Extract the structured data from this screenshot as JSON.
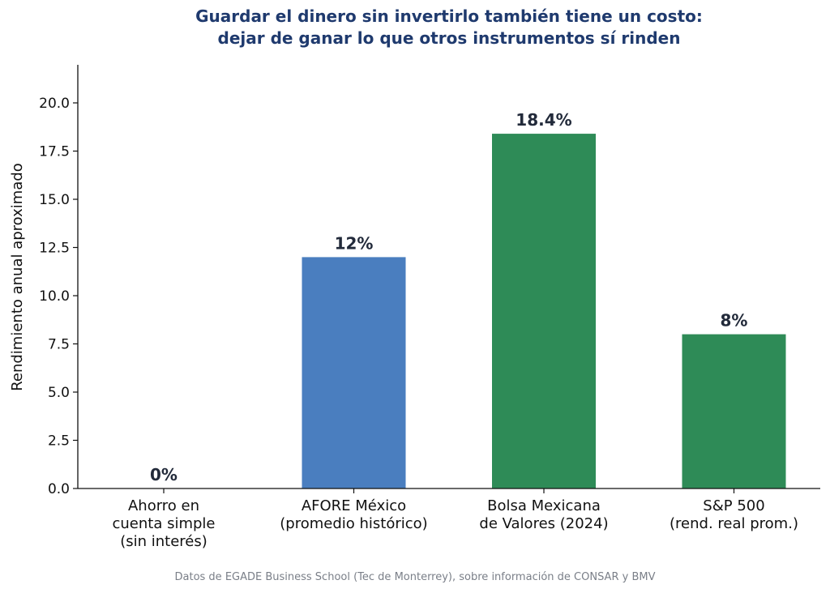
{
  "chart_data": {
    "type": "bar",
    "title_lines": [
      "Guardar el dinero sin invertirlo también tiene un costo:",
      "dejar de ganar lo que otros instrumentos sí rinden"
    ],
    "xlabel": "",
    "ylabel": "Rendimiento anual aproximado",
    "ylim": [
      0,
      22
    ],
    "yticks": [
      0.0,
      2.5,
      5.0,
      7.5,
      10.0,
      12.5,
      15.0,
      17.5,
      20.0
    ],
    "ytick_labels": [
      "0.0",
      "2.5",
      "5.0",
      "7.5",
      "10.0",
      "12.5",
      "15.0",
      "17.5",
      "20.0"
    ],
    "grid": false,
    "bars": [
      {
        "category_lines": [
          "Ahorro en",
          "cuenta simple",
          "(sin interés)"
        ],
        "value": 0,
        "label": "0%",
        "color": "#ffffff"
      },
      {
        "category_lines": [
          "AFORE México",
          "(promedio histórico)"
        ],
        "value": 12,
        "label": "12%",
        "color": "#4a7ebf"
      },
      {
        "category_lines": [
          "Bolsa Mexicana",
          "de Valores (2024)"
        ],
        "value": 18.4,
        "label": "18.4%",
        "color": "#2e8b57"
      },
      {
        "category_lines": [
          "S&P 500",
          "(rend. real prom.)"
        ],
        "value": 8,
        "label": "8%",
        "color": "#2e8b57"
      }
    ],
    "source": "Datos de EGADE Business School (Tec de Monterrey), sobre información de CONSAR y BMV"
  }
}
